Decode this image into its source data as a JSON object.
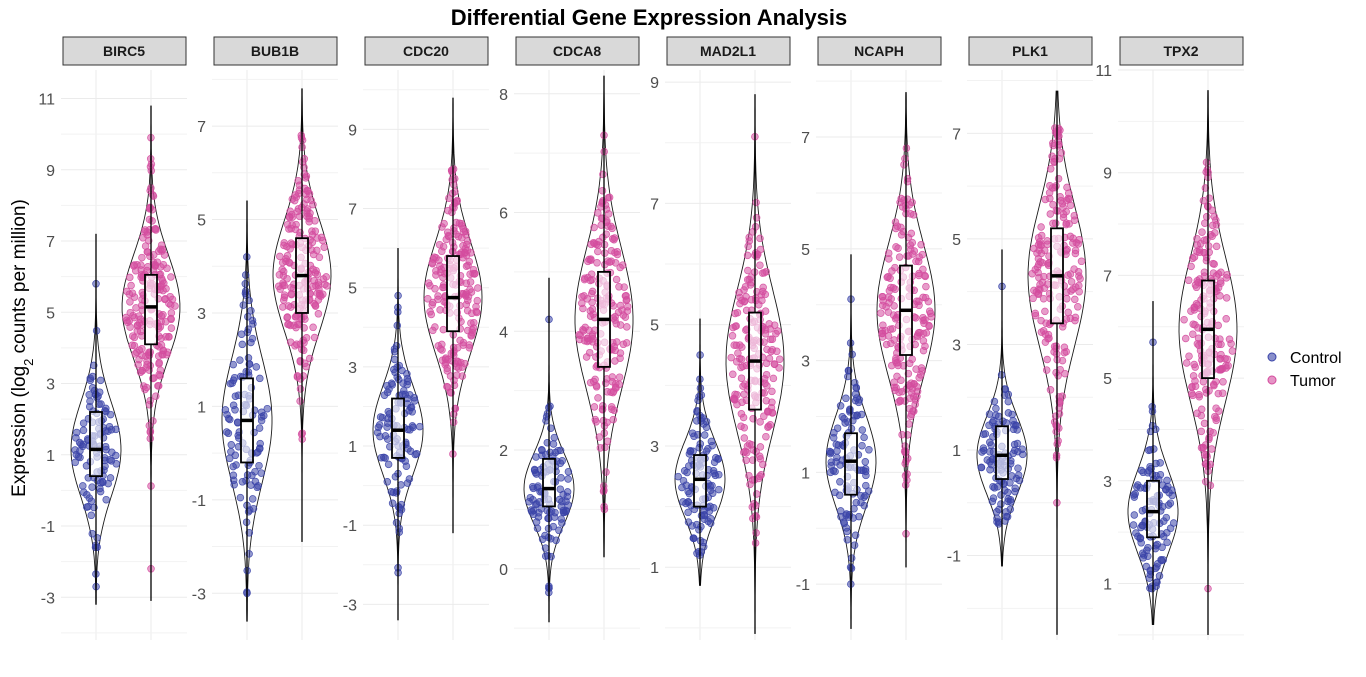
{
  "chart_data": {
    "type": "violin",
    "title": "Differential Gene Expression Analysis",
    "ylabel_main": "Expression (log",
    "ylabel_sub": "2",
    "ylabel_tail": " counts per million)",
    "xlabel": "",
    "groups": [
      "Control",
      "Tumor"
    ],
    "legend": {
      "position": "right",
      "entries": [
        {
          "label": "Control",
          "color": "#3A44A8"
        },
        {
          "label": "Tumor",
          "color": "#D44C9E"
        }
      ]
    },
    "grid": true,
    "facets": [
      {
        "gene": "BIRC5",
        "ylim": [
          -4.2,
          11.8
        ],
        "yticks": [
          -3,
          -1,
          1,
          3,
          5,
          7,
          9,
          11
        ],
        "control": {
          "min": -3.2,
          "q1": 0.4,
          "median": 1.15,
          "q3": 2.2,
          "max": 7.2,
          "pts_range": [
            -2.7,
            5.8
          ]
        },
        "tumor": {
          "min": -3.1,
          "q1": 4.1,
          "median": 5.15,
          "q3": 6.05,
          "max": 10.8,
          "pts_range": [
            -2.2,
            9.9
          ]
        }
      },
      {
        "gene": "BUB1B",
        "ylim": [
          -4.0,
          8.2
        ],
        "yticks": [
          -3,
          -1,
          1,
          3,
          5,
          7
        ],
        "control": {
          "min": -3.6,
          "q1": -0.2,
          "median": 0.7,
          "q3": 1.6,
          "max": 5.4,
          "pts_range": [
            -3.0,
            4.2
          ]
        },
        "tumor": {
          "min": -1.9,
          "q1": 3.0,
          "median": 3.8,
          "q3": 4.6,
          "max": 7.8,
          "pts_range": [
            0.3,
            6.8
          ]
        }
      },
      {
        "gene": "CDC20",
        "ylim": [
          -3.9,
          10.5
        ],
        "yticks": [
          -3,
          -1,
          1,
          3,
          5,
          7,
          9
        ],
        "control": {
          "min": -3.4,
          "q1": 0.7,
          "median": 1.4,
          "q3": 2.2,
          "max": 6.0,
          "pts_range": [
            -2.2,
            4.8
          ]
        },
        "tumor": {
          "min": -1.2,
          "q1": 3.9,
          "median": 4.75,
          "q3": 5.8,
          "max": 9.8,
          "pts_range": [
            0.8,
            8.0
          ]
        }
      },
      {
        "gene": "CDCA8",
        "ylim": [
          -1.2,
          8.4
        ],
        "yticks": [
          0,
          2,
          4,
          6,
          8
        ],
        "control": {
          "min": -0.9,
          "q1": 1.05,
          "median": 1.35,
          "q3": 1.85,
          "max": 4.9,
          "pts_range": [
            -0.4,
            4.2
          ]
        },
        "tumor": {
          "min": 0.2,
          "q1": 3.4,
          "median": 4.2,
          "q3": 5.0,
          "max": 8.3,
          "pts_range": [
            1.0,
            7.3
          ]
        }
      },
      {
        "gene": "MAD2L1",
        "ylim": [
          -0.2,
          9.2
        ],
        "yticks": [
          1,
          3,
          5,
          7,
          9
        ],
        "control": {
          "min": 0.7,
          "q1": 2.0,
          "median": 2.45,
          "q3": 2.85,
          "max": 5.1,
          "pts_range": [
            1.2,
            4.5
          ]
        },
        "tumor": {
          "min": -0.1,
          "q1": 3.6,
          "median": 4.4,
          "q3": 5.2,
          "max": 8.8,
          "pts_range": [
            1.4,
            8.1
          ]
        }
      },
      {
        "gene": "NCAPH",
        "ylim": [
          -2.0,
          8.2
        ],
        "yticks": [
          -1,
          1,
          3,
          5,
          7
        ],
        "control": {
          "min": -1.8,
          "q1": 0.6,
          "median": 1.2,
          "q3": 1.7,
          "max": 4.9,
          "pts_range": [
            -1.0,
            4.1
          ]
        },
        "tumor": {
          "min": -0.7,
          "q1": 3.1,
          "median": 3.9,
          "q3": 4.7,
          "max": 7.8,
          "pts_range": [
            -0.1,
            6.8
          ]
        }
      },
      {
        "gene": "PLK1",
        "ylim": [
          -2.6,
          8.2
        ],
        "yticks": [
          -1,
          1,
          3,
          5,
          7
        ],
        "control": {
          "min": -1.2,
          "q1": 0.45,
          "median": 0.9,
          "q3": 1.45,
          "max": 4.8,
          "pts_range": [
            -0.4,
            4.1
          ]
        },
        "tumor": {
          "min": -2.5,
          "q1": 3.4,
          "median": 4.3,
          "q3": 5.2,
          "max": 7.8,
          "pts_range": [
            0.0,
            7.1
          ]
        }
      },
      {
        "gene": "TPX2",
        "ylim": [
          -0.1,
          11.0
        ],
        "yticks": [
          1,
          3,
          5,
          7,
          9,
          11
        ],
        "control": {
          "min": 0.2,
          "q1": 1.9,
          "median": 2.4,
          "q3": 3.0,
          "max": 6.5,
          "pts_range": [
            0.9,
            5.7
          ]
        },
        "tumor": {
          "min": 0.0,
          "q1": 5.0,
          "median": 5.95,
          "q3": 6.9,
          "max": 10.6,
          "pts_range": [
            0.9,
            9.2
          ]
        }
      }
    ]
  }
}
